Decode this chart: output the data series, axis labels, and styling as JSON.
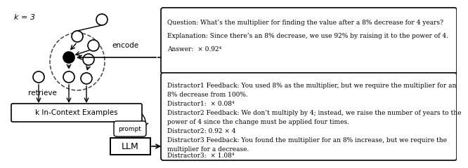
{
  "k_label": "k = 3",
  "encode_label": "encode",
  "retrieve_label": "retrieve",
  "prompt_label": "prompt",
  "llm_label": "LLM",
  "k_examples_label": "k In-Context Examples",
  "top_box_lines": [
    "Question: What’s the multiplier for finding the value after a 8% decrease for 4 years?",
    "Explanation: Since there’s an 8% decrease, we use 92% by raising it to the power of 4.",
    "Answer:  × 0.92⁴"
  ],
  "bottom_box_lines": [
    "Distractor1 Feedback: You used 8% as the multiplier, but we require the multiplier for an",
    "8% decrease from 100%.",
    "Distractor1:  × 0.08⁴",
    "Distractor2 Feedback: We don’t multiply by 4; instead, we raise the number of years to the",
    "power of 4 since the change must be applied four times.",
    "Distractor2: 0.92 × 4",
    "Distractor3 Feedback: You found the multiplier for an 8% increase, but we require the",
    "multiplier for a decrease.",
    "Distractor3:  × 1.08⁴"
  ],
  "bg_color": "#ffffff",
  "text_color": "#000000",
  "arrow_color": "#000000",
  "circle_facecolor": "#ffffff",
  "filled_circle_color": "#000000",
  "dashed_color": "#444444",
  "box_edge_color": "#000000",
  "font_size": 6.5,
  "label_font_size": 7.5
}
